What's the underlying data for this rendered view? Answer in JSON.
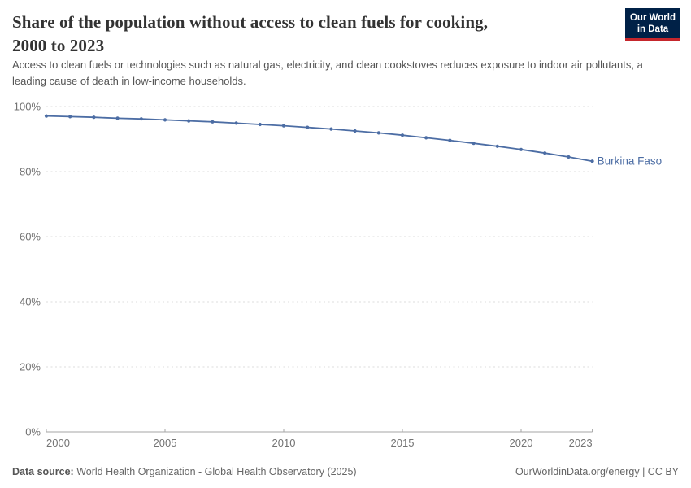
{
  "header": {
    "title_line1": "Share of the population without access to clean fuels for cooking,",
    "title_line2": "2000 to 2023",
    "subtitle": "Access to clean fuels or technologies such as natural gas, electricity, and clean cookstoves reduces exposure to indoor air pollutants, a leading cause of death in low-income households."
  },
  "logo": {
    "line1": "Our World",
    "line2": "in Data",
    "bg_color": "#002147",
    "accent_color": "#C5262C"
  },
  "chart_data": {
    "type": "line",
    "title": "Share of the population without access to clean fuels for cooking, 2000 to 2023",
    "x": [
      2000,
      2001,
      2002,
      2003,
      2004,
      2005,
      2006,
      2007,
      2008,
      2009,
      2010,
      2011,
      2012,
      2013,
      2014,
      2015,
      2016,
      2017,
      2018,
      2019,
      2020,
      2021,
      2022,
      2023
    ],
    "series": [
      {
        "name": "Burkina Faso",
        "color": "#4C6DA4",
        "values": [
          97.1,
          96.9,
          96.7,
          96.4,
          96.2,
          95.9,
          95.6,
          95.3,
          94.9,
          94.5,
          94.1,
          93.6,
          93.1,
          92.5,
          91.9,
          91.2,
          90.4,
          89.6,
          88.7,
          87.8,
          86.8,
          85.7,
          84.5,
          83.2
        ]
      }
    ],
    "xlim": [
      2000,
      2023
    ],
    "ylim": [
      0,
      100
    ],
    "y_tick_values": [
      0,
      20,
      40,
      60,
      80,
      100
    ],
    "y_tick_labels": [
      "0%",
      "20%",
      "40%",
      "60%",
      "80%",
      "100%"
    ],
    "x_tick_values": [
      2000,
      2005,
      2010,
      2015,
      2020,
      2023
    ],
    "x_tick_labels": [
      "2000",
      "2005",
      "2010",
      "2015",
      "2020",
      "2023"
    ],
    "grid": "dashed-horizontal",
    "legend_position": "end-of-line-label",
    "end_label": "Burkina Faso"
  },
  "footer": {
    "datasource_label": "Data source:",
    "datasource_value": " World Health Organization - Global Health Observatory (2025)",
    "rights": "OurWorldinData.org/energy | CC BY"
  },
  "colors": {
    "line": "#4C6DA4",
    "grid": "#dcdcdc",
    "axis": "#a5a5a5",
    "tick_text": "#737373",
    "title_text": "#333333",
    "subtitle_text": "#555555",
    "footer_text": "#666666"
  }
}
